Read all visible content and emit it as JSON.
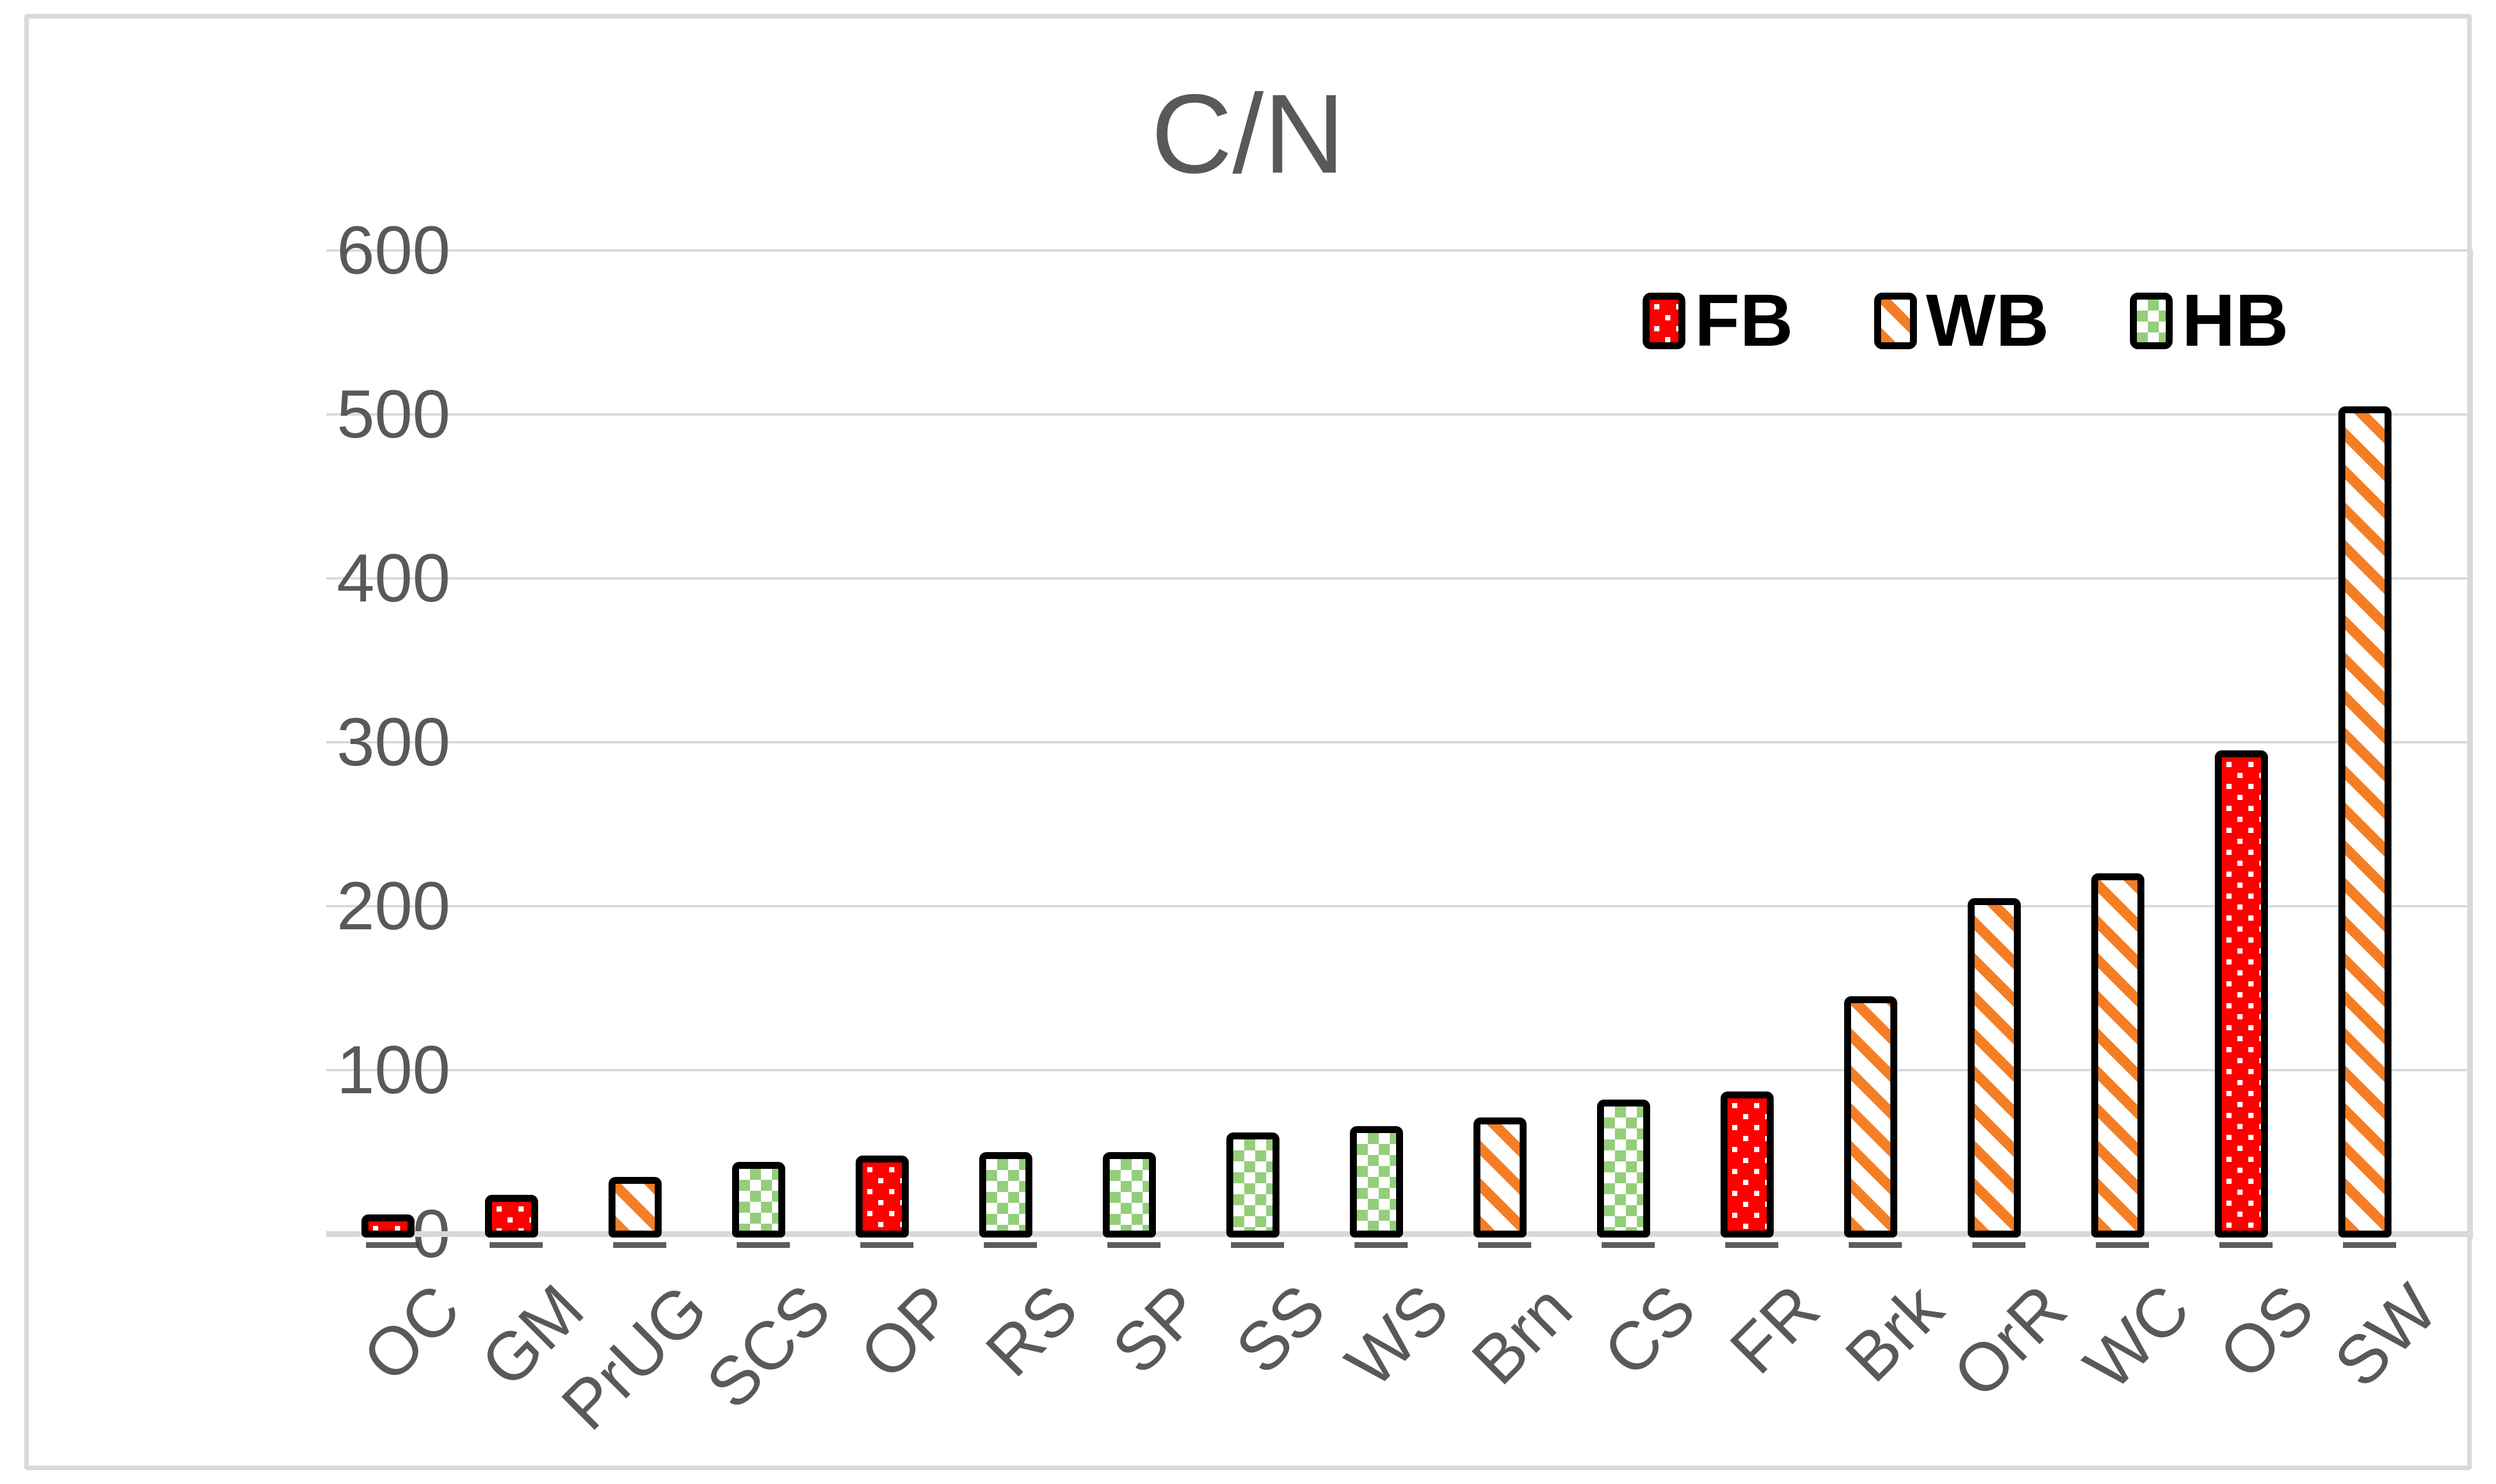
{
  "chart_data": {
    "type": "bar",
    "title": "C/N",
    "xlabel": "",
    "ylabel": "",
    "categories": [
      "OC",
      "GM",
      "PrUG",
      "SCS",
      "OP",
      "RS",
      "SP",
      "SS",
      "WS",
      "Brn",
      "CS",
      "FR",
      "Brk",
      "OrR",
      "WC",
      "OS",
      "SW"
    ],
    "values": [
      12,
      24,
      35,
      44,
      48,
      50,
      50,
      62,
      66,
      71,
      82,
      87,
      145,
      205,
      220,
      295,
      505
    ],
    "series_membership": [
      "FB",
      "FB",
      "WB",
      "HB",
      "FB",
      "HB",
      "HB",
      "HB",
      "HB",
      "WB",
      "HB",
      "FB",
      "WB",
      "WB",
      "WB",
      "FB",
      "WB"
    ],
    "legend": [
      {
        "label": "FB",
        "pattern": "red-with-white-dots",
        "color": "#FE0000"
      },
      {
        "label": "WB",
        "pattern": "orange-diagonal-stripes",
        "color": "#F57E25"
      },
      {
        "label": "HB",
        "pattern": "green-white-checkerboard",
        "color": "#94CE7A"
      }
    ],
    "ylim": [
      0,
      600
    ],
    "yticks": [
      0,
      100,
      200,
      300,
      400,
      500,
      600
    ],
    "grid": true,
    "legend_position": "top-right",
    "colors": {
      "axis_text": "#595959",
      "title_text": "#595959",
      "gridline": "#D9D9D9",
      "frame_border": "#D9D9D9",
      "bar_border": "#000000",
      "bar_shadow": "#3F3F3F",
      "background": "#FFFFFF"
    }
  }
}
